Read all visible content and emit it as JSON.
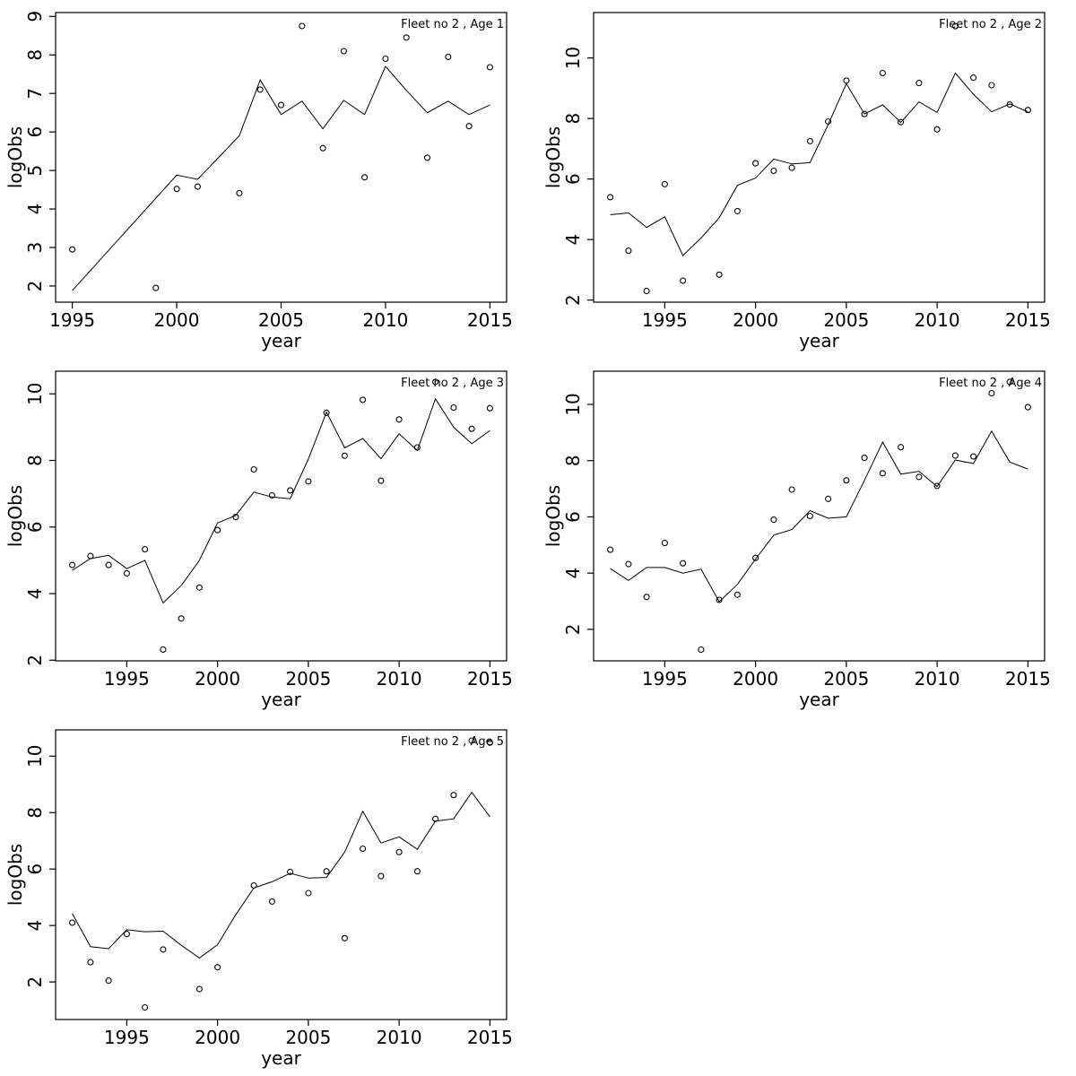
{
  "figure": {
    "background": "#ffffff",
    "line_color": "#000000",
    "text_color": "#000000",
    "xlabel": "year",
    "ylabel": "logObs"
  },
  "chart_data": [
    {
      "type": "scatter",
      "title": "Fleet no 2 , Age 1",
      "xlabel": "year",
      "ylabel": "logObs",
      "xlim": [
        1994.2,
        2015.8
      ],
      "ylim": [
        1.58,
        9.1
      ],
      "xticks": [
        1995,
        2000,
        2005,
        2010,
        2015
      ],
      "yticks": [
        2,
        3,
        4,
        5,
        6,
        7,
        8,
        9
      ],
      "grid": false,
      "legend": "none",
      "points": [
        [
          1995,
          2.95
        ],
        [
          1999,
          1.95
        ],
        [
          2000,
          4.52
        ],
        [
          2001,
          4.58
        ],
        [
          2003,
          4.41
        ],
        [
          2004,
          7.1
        ],
        [
          2005,
          6.7
        ],
        [
          2006,
          8.75
        ],
        [
          2007,
          5.58
        ],
        [
          2008,
          8.1
        ],
        [
          2009,
          4.82
        ],
        [
          2010,
          7.9
        ],
        [
          2011,
          8.45
        ],
        [
          2012,
          5.33
        ],
        [
          2013,
          7.95
        ],
        [
          2014,
          6.15
        ],
        [
          2015,
          7.68
        ]
      ],
      "fit_line": [
        [
          1995,
          1.88
        ],
        [
          1996,
          2.48
        ],
        [
          1997,
          3.08
        ],
        [
          1998,
          3.68
        ],
        [
          1999,
          4.28
        ],
        [
          2000,
          4.88
        ],
        [
          2001,
          4.77
        ],
        [
          2002,
          5.33
        ],
        [
          2003,
          5.9
        ],
        [
          2004,
          7.35
        ],
        [
          2005,
          6.45
        ],
        [
          2006,
          6.8
        ],
        [
          2007,
          6.08
        ],
        [
          2008,
          6.82
        ],
        [
          2009,
          6.45
        ],
        [
          2010,
          7.7
        ],
        [
          2011,
          7.08
        ],
        [
          2012,
          6.5
        ],
        [
          2013,
          6.8
        ],
        [
          2014,
          6.45
        ],
        [
          2015,
          6.7
        ]
      ]
    },
    {
      "type": "scatter",
      "title": "Fleet no 2 , Age 2",
      "xlabel": "year",
      "ylabel": "logObs",
      "xlim": [
        1991.08,
        2015.92
      ],
      "ylim": [
        1.93,
        11.5
      ],
      "xticks": [
        1995,
        2000,
        2005,
        2010,
        2015
      ],
      "yticks": [
        2,
        4,
        6,
        8,
        10
      ],
      "grid": false,
      "legend": "none",
      "points": [
        [
          1992,
          5.4
        ],
        [
          1993,
          3.63
        ],
        [
          1994,
          2.3
        ],
        [
          1995,
          5.83
        ],
        [
          1996,
          2.64
        ],
        [
          1998,
          2.84
        ],
        [
          1999,
          4.94
        ],
        [
          2000,
          6.52
        ],
        [
          2001,
          6.27
        ],
        [
          2002,
          6.37
        ],
        [
          2003,
          7.25
        ],
        [
          2004,
          7.9
        ],
        [
          2005,
          9.25
        ],
        [
          2006,
          8.15
        ],
        [
          2007,
          9.5
        ],
        [
          2008,
          7.88
        ],
        [
          2009,
          9.17
        ],
        [
          2010,
          7.64
        ],
        [
          2011,
          11.05
        ],
        [
          2012,
          9.35
        ],
        [
          2013,
          9.1
        ],
        [
          2014,
          8.46
        ],
        [
          2015,
          8.28
        ]
      ],
      "fit_line": [
        [
          1992,
          4.82
        ],
        [
          1993,
          4.88
        ],
        [
          1994,
          4.4
        ],
        [
          1995,
          4.75
        ],
        [
          1996,
          3.47
        ],
        [
          1997,
          4.05
        ],
        [
          1998,
          4.72
        ],
        [
          1999,
          5.79
        ],
        [
          2000,
          6.03
        ],
        [
          2001,
          6.66
        ],
        [
          2002,
          6.5
        ],
        [
          2003,
          6.54
        ],
        [
          2004,
          7.8
        ],
        [
          2005,
          9.15
        ],
        [
          2006,
          8.15
        ],
        [
          2007,
          8.45
        ],
        [
          2008,
          7.87
        ],
        [
          2009,
          8.55
        ],
        [
          2010,
          8.2
        ],
        [
          2011,
          9.5
        ],
        [
          2012,
          8.8
        ],
        [
          2013,
          8.22
        ],
        [
          2014,
          8.48
        ],
        [
          2015,
          8.22
        ]
      ]
    },
    {
      "type": "scatter",
      "title": "Fleet no 2 , Age 3",
      "xlabel": "year",
      "ylabel": "logObs",
      "xlim": [
        1991.08,
        2015.92
      ],
      "ylim": [
        1.98,
        10.68
      ],
      "xticks": [
        1995,
        2000,
        2005,
        2010,
        2015
      ],
      "yticks": [
        2,
        4,
        6,
        8,
        10
      ],
      "grid": false,
      "legend": "none",
      "points": [
        [
          1992,
          4.86
        ],
        [
          1993,
          5.13
        ],
        [
          1994,
          4.86
        ],
        [
          1995,
          4.61
        ],
        [
          1996,
          5.33
        ],
        [
          1997,
          2.32
        ],
        [
          1998,
          3.25
        ],
        [
          1999,
          4.18
        ],
        [
          2000,
          5.91
        ],
        [
          2001,
          6.3
        ],
        [
          2002,
          7.73
        ],
        [
          2003,
          6.95
        ],
        [
          2004,
          7.1
        ],
        [
          2005,
          7.37
        ],
        [
          2006,
          9.43
        ],
        [
          2007,
          8.14
        ],
        [
          2008,
          9.82
        ],
        [
          2009,
          7.39
        ],
        [
          2010,
          9.23
        ],
        [
          2011,
          8.39
        ],
        [
          2012,
          10.36
        ],
        [
          2013,
          9.59
        ],
        [
          2014,
          8.95
        ],
        [
          2015,
          9.57
        ]
      ],
      "fit_line": [
        [
          1992,
          4.7
        ],
        [
          1993,
          5.05
        ],
        [
          1994,
          5.15
        ],
        [
          1995,
          4.75
        ],
        [
          1996,
          5.0
        ],
        [
          1997,
          3.72
        ],
        [
          1998,
          4.24
        ],
        [
          1999,
          5.0
        ],
        [
          2000,
          6.12
        ],
        [
          2001,
          6.35
        ],
        [
          2002,
          7.05
        ],
        [
          2003,
          6.9
        ],
        [
          2004,
          6.85
        ],
        [
          2005,
          8.04
        ],
        [
          2006,
          9.45
        ],
        [
          2007,
          8.38
        ],
        [
          2008,
          8.66
        ],
        [
          2009,
          8.05
        ],
        [
          2010,
          8.8
        ],
        [
          2011,
          8.3
        ],
        [
          2012,
          9.85
        ],
        [
          2013,
          9.0
        ],
        [
          2014,
          8.5
        ],
        [
          2015,
          8.9
        ]
      ]
    },
    {
      "type": "scatter",
      "title": "Fleet no 2 , Age 4",
      "xlabel": "year",
      "ylabel": "logObs",
      "xlim": [
        1991.08,
        2015.92
      ],
      "ylim": [
        0.88,
        11.18
      ],
      "xticks": [
        1995,
        2000,
        2005,
        2010,
        2015
      ],
      "yticks": [
        2,
        4,
        6,
        8,
        10
      ],
      "grid": false,
      "legend": "none",
      "points": [
        [
          1992,
          4.83
        ],
        [
          1993,
          4.32
        ],
        [
          1994,
          3.15
        ],
        [
          1995,
          5.07
        ],
        [
          1996,
          4.35
        ],
        [
          1997,
          1.28
        ],
        [
          1998,
          3.05
        ],
        [
          1999,
          3.23
        ],
        [
          2000,
          4.54
        ],
        [
          2001,
          5.9
        ],
        [
          2002,
          6.97
        ],
        [
          2003,
          6.03
        ],
        [
          2004,
          6.64
        ],
        [
          2005,
          7.3
        ],
        [
          2006,
          8.1
        ],
        [
          2007,
          7.55
        ],
        [
          2008,
          8.48
        ],
        [
          2009,
          7.42
        ],
        [
          2010,
          7.1
        ],
        [
          2011,
          8.18
        ],
        [
          2012,
          8.15
        ],
        [
          2013,
          10.4
        ],
        [
          2014,
          10.8
        ],
        [
          2015,
          9.9
        ]
      ],
      "fit_line": [
        [
          1992,
          4.16
        ],
        [
          1993,
          3.74
        ],
        [
          1994,
          4.2
        ],
        [
          1995,
          4.2
        ],
        [
          1996,
          4.0
        ],
        [
          1997,
          4.14
        ],
        [
          1998,
          2.98
        ],
        [
          1999,
          3.6
        ],
        [
          2000,
          4.5
        ],
        [
          2001,
          5.35
        ],
        [
          2002,
          5.55
        ],
        [
          2003,
          6.22
        ],
        [
          2004,
          5.95
        ],
        [
          2005,
          6.0
        ],
        [
          2006,
          7.3
        ],
        [
          2007,
          8.66
        ],
        [
          2008,
          7.52
        ],
        [
          2009,
          7.62
        ],
        [
          2010,
          7.08
        ],
        [
          2011,
          8.02
        ],
        [
          2012,
          7.9
        ],
        [
          2013,
          9.05
        ],
        [
          2014,
          7.95
        ],
        [
          2015,
          7.7
        ]
      ]
    },
    {
      "type": "scatter",
      "title": "Fleet no 2 , Age 5",
      "xlabel": "year",
      "ylabel": "logObs",
      "xlim": [
        1991.08,
        2015.92
      ],
      "ylim": [
        0.67,
        10.93
      ],
      "xticks": [
        1995,
        2000,
        2005,
        2010,
        2015
      ],
      "yticks": [
        2,
        4,
        6,
        8,
        10
      ],
      "grid": false,
      "legend": "none",
      "points": [
        [
          1992,
          4.1
        ],
        [
          1993,
          2.7
        ],
        [
          1994,
          2.05
        ],
        [
          1995,
          3.7
        ],
        [
          1996,
          1.1
        ],
        [
          1997,
          3.15
        ],
        [
          1999,
          1.75
        ],
        [
          2000,
          2.52
        ],
        [
          2002,
          5.42
        ],
        [
          2003,
          4.85
        ],
        [
          2004,
          5.9
        ],
        [
          2005,
          5.15
        ],
        [
          2006,
          5.92
        ],
        [
          2007,
          3.55
        ],
        [
          2008,
          6.72
        ],
        [
          2009,
          5.75
        ],
        [
          2010,
          6.6
        ],
        [
          2011,
          5.92
        ],
        [
          2012,
          7.78
        ],
        [
          2013,
          8.62
        ],
        [
          2014,
          10.55
        ],
        [
          2015,
          10.48
        ]
      ],
      "fit_line": [
        [
          1992,
          4.42
        ],
        [
          1993,
          3.25
        ],
        [
          1994,
          3.18
        ],
        [
          1995,
          3.85
        ],
        [
          1996,
          3.78
        ],
        [
          1997,
          3.8
        ],
        [
          1998,
          3.3
        ],
        [
          1999,
          2.85
        ],
        [
          2000,
          3.32
        ],
        [
          2001,
          4.38
        ],
        [
          2002,
          5.33
        ],
        [
          2003,
          5.55
        ],
        [
          2004,
          5.85
        ],
        [
          2005,
          5.68
        ],
        [
          2006,
          5.7
        ],
        [
          2007,
          6.6
        ],
        [
          2008,
          8.05
        ],
        [
          2009,
          6.92
        ],
        [
          2010,
          7.14
        ],
        [
          2011,
          6.7
        ],
        [
          2012,
          7.7
        ],
        [
          2013,
          7.78
        ],
        [
          2014,
          8.72
        ],
        [
          2015,
          7.85
        ]
      ]
    }
  ]
}
